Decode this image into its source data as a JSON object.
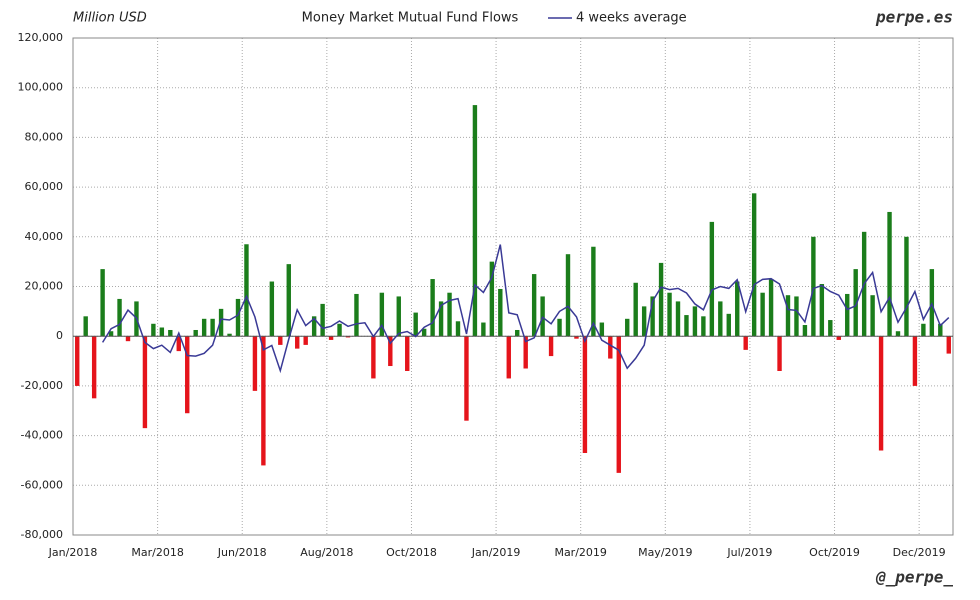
{
  "chart_data": {
    "type": "bar",
    "title": "Money Market Mutual Fund Flows",
    "ylabel": "Million USD",
    "watermark_top": "perpe.es",
    "watermark_bottom": "@_perpe_",
    "positive_color": "#1b7d1b",
    "negative_color": "#e5141b",
    "series": [
      {
        "values": [
          -20000,
          8000,
          -25000,
          27000,
          2000,
          15000,
          -2000,
          14000,
          -37000,
          5000,
          3500,
          2500,
          -6000,
          -31000,
          2500,
          7000,
          7000,
          11000,
          1000,
          15000,
          37000,
          -22000,
          -52000,
          22000,
          -3500,
          29000,
          -5000,
          -3500,
          8000,
          13000,
          -1500,
          5000,
          -500,
          17000,
          0,
          -17000,
          17500,
          -12000,
          16000,
          -14000,
          9500,
          3000,
          23000,
          14000,
          17500,
          6000,
          -34000,
          93000,
          5500,
          30000,
          19000,
          -17000,
          2500,
          -13000,
          25000,
          16000,
          -8000,
          7000,
          33000,
          -1000,
          -47000,
          36000,
          5500,
          -9000,
          -55000,
          7000,
          21500,
          12000,
          16000,
          29500,
          17500,
          14000,
          8500,
          12000,
          8000,
          46000,
          14000,
          9000,
          22000,
          -5500,
          57500,
          17500,
          23000,
          -14000,
          16500,
          16000,
          4500,
          40000,
          21000,
          6500,
          -1500,
          17000,
          27000,
          42000,
          16500,
          -46000,
          50000,
          2000,
          40000,
          -20000,
          5000,
          27000,
          5000,
          -7000
        ]
      },
      {
        "name": "4 weeks average",
        "color": "#3a3a96",
        "values": [
          null,
          null,
          null,
          -2500,
          3000,
          4750,
          10500,
          7250,
          -2500,
          -5000,
          -3625,
          -6500,
          1250,
          -7750,
          -8000,
          -6875,
          -3625,
          6875,
          6500,
          8500,
          16000,
          7750,
          -5500,
          -3750,
          -13875,
          -1125,
          10625,
          4250,
          7125,
          3125,
          4000,
          6125,
          4000,
          5000,
          5375,
          -125,
          4375,
          -2875,
          1125,
          1875,
          -125,
          3625,
          5375,
          12375,
          14375,
          15125,
          875,
          20625,
          17625,
          23625,
          36875,
          9375,
          8625,
          -2125,
          -625,
          7625,
          5000,
          10000,
          12000,
          7750,
          -2000,
          5250,
          -1625,
          -3625,
          -5625,
          -12875,
          -8875,
          -3625,
          14125,
          19750,
          18750,
          19250,
          17375,
          13000,
          10625,
          18625,
          20000,
          19250,
          22750,
          9875,
          20750,
          22875,
          23125,
          21000,
          10750,
          10375,
          5750,
          19250,
          20375,
          18000,
          16500,
          10750,
          12250,
          21125,
          25625,
          9875,
          15625,
          5625,
          11500,
          18000,
          6750,
          13000,
          4250,
          7500
        ]
      }
    ],
    "xticks": [
      {
        "value": 0,
        "label": "Jan/2018"
      },
      {
        "value": 10,
        "label": "Mar/2018"
      },
      {
        "value": 20,
        "label": "Jun/2018"
      },
      {
        "value": 30,
        "label": "Aug/2018"
      },
      {
        "value": 40,
        "label": "Oct/2018"
      },
      {
        "value": 50,
        "label": "Jan/2019"
      },
      {
        "value": 60,
        "label": "Mar/2019"
      },
      {
        "value": 70,
        "label": "May/2019"
      },
      {
        "value": 80,
        "label": "Jul/2019"
      },
      {
        "value": 90,
        "label": "Oct/2019"
      },
      {
        "value": 100,
        "label": "Dec/2019"
      }
    ],
    "ylim": [
      -80000,
      120000
    ],
    "yticks": [
      {
        "value": -80000,
        "label": "-80,000"
      },
      {
        "value": -60000,
        "label": "-60,000"
      },
      {
        "value": -40000,
        "label": "-40,000"
      },
      {
        "value": -20000,
        "label": "-20,000"
      },
      0,
      {
        "value": 20000,
        "label": "20,000"
      },
      {
        "value": 40000,
        "label": "40,000"
      },
      {
        "value": 60000,
        "label": "60,000"
      },
      {
        "value": 80000,
        "label": "80,000"
      },
      {
        "value": 100000,
        "label": "100,000"
      },
      {
        "value": 120000,
        "label": "120,000"
      }
    ],
    "grid": true
  }
}
